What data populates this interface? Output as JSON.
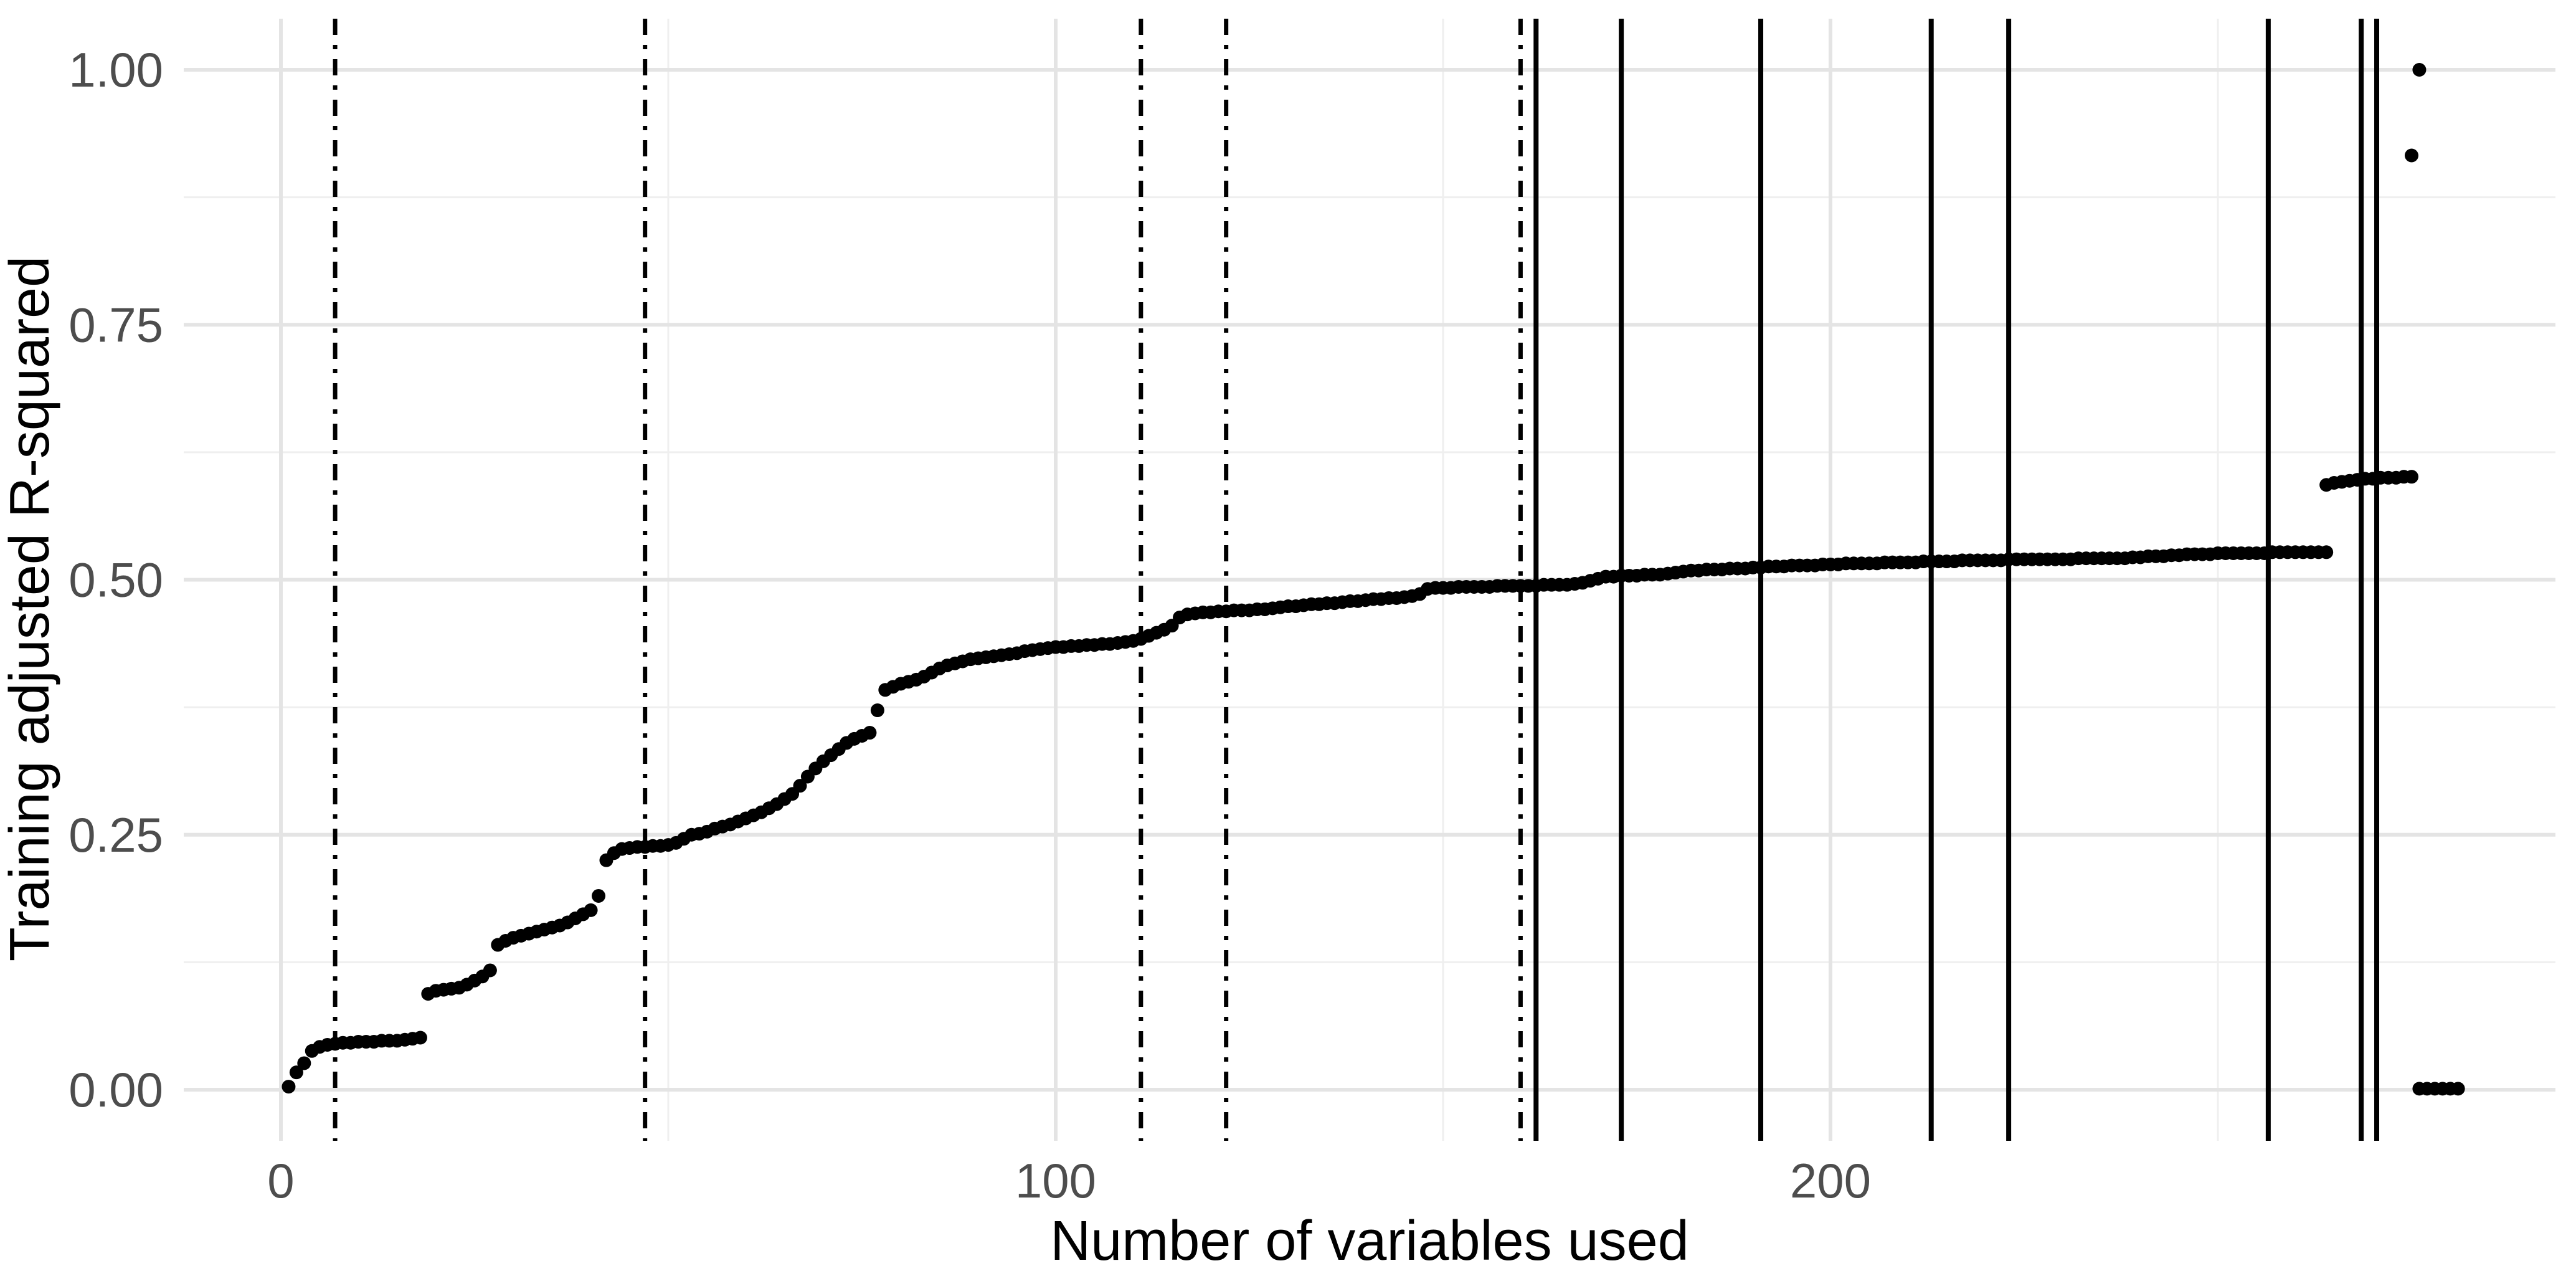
{
  "chart_data": {
    "type": "scatter",
    "title": "",
    "xlabel": "Number of variables used",
    "ylabel": "Training adjusted R-squared",
    "grid": "on",
    "legend": "none",
    "xlim": [
      -12.5,
      294
    ],
    "ylim": [
      -0.05,
      1.05
    ],
    "x_ticks": [
      {
        "label": "0",
        "value": 0
      },
      {
        "label": "100",
        "value": 100
      },
      {
        "label": "200",
        "value": 200
      }
    ],
    "y_ticks": [
      {
        "label": "0.00",
        "value": 0.0
      },
      {
        "label": "0.25",
        "value": 0.25
      },
      {
        "label": "0.50",
        "value": 0.5
      },
      {
        "label": "0.75",
        "value": 0.75
      },
      {
        "label": "1.00",
        "value": 1.0
      }
    ],
    "x_minor_gridlines": [
      50,
      150,
      250
    ],
    "y_minor_gridlines": [
      0.125,
      0.375,
      0.625,
      0.875
    ],
    "vlines_dashdot": [
      7,
      47,
      111,
      122,
      160
    ],
    "vlines_solid": [
      162,
      173,
      191,
      213,
      223,
      256.5,
      268.5,
      270.5
    ],
    "colors": {
      "point": "#000000",
      "vline": "#000000",
      "grid_major": "#e4e4e4",
      "grid_minor": "#efefef",
      "tick_text": "#4d4d4d",
      "axis_title_text": "#000000",
      "background": "#ffffff"
    },
    "points": [
      [
        1,
        0.003
      ],
      [
        2,
        0.017
      ],
      [
        3,
        0.026
      ],
      [
        4,
        0.038
      ],
      [
        5,
        0.042
      ],
      [
        6,
        0.044
      ],
      [
        7,
        0.045
      ],
      [
        8,
        0.046
      ],
      [
        9,
        0.046
      ],
      [
        10,
        0.047
      ],
      [
        11,
        0.047
      ],
      [
        12,
        0.047
      ],
      [
        13,
        0.048
      ],
      [
        14,
        0.048
      ],
      [
        15,
        0.048
      ],
      [
        16,
        0.049
      ],
      [
        17,
        0.05
      ],
      [
        18,
        0.051
      ],
      [
        19,
        0.094
      ],
      [
        20,
        0.097
      ],
      [
        21,
        0.098
      ],
      [
        22,
        0.099
      ],
      [
        23,
        0.1
      ],
      [
        24,
        0.103
      ],
      [
        25,
        0.107
      ],
      [
        26,
        0.111
      ],
      [
        27,
        0.117
      ],
      [
        28,
        0.142
      ],
      [
        29,
        0.146
      ],
      [
        30,
        0.149
      ],
      [
        31,
        0.151
      ],
      [
        32,
        0.153
      ],
      [
        33,
        0.155
      ],
      [
        34,
        0.157
      ],
      [
        35,
        0.159
      ],
      [
        36,
        0.161
      ],
      [
        37,
        0.164
      ],
      [
        38,
        0.168
      ],
      [
        39,
        0.172
      ],
      [
        40,
        0.176
      ],
      [
        41,
        0.19
      ],
      [
        42,
        0.225
      ],
      [
        43,
        0.232
      ],
      [
        44,
        0.236
      ],
      [
        45,
        0.237
      ],
      [
        46,
        0.238
      ],
      [
        47,
        0.238
      ],
      [
        48,
        0.239
      ],
      [
        49,
        0.239
      ],
      [
        50,
        0.24
      ],
      [
        51,
        0.242
      ],
      [
        52,
        0.246
      ],
      [
        53,
        0.25
      ],
      [
        54,
        0.251
      ],
      [
        55,
        0.253
      ],
      [
        56,
        0.256
      ],
      [
        57,
        0.258
      ],
      [
        58,
        0.26
      ],
      [
        59,
        0.263
      ],
      [
        60,
        0.266
      ],
      [
        61,
        0.269
      ],
      [
        62,
        0.272
      ],
      [
        63,
        0.276
      ],
      [
        64,
        0.28
      ],
      [
        65,
        0.285
      ],
      [
        66,
        0.29
      ],
      [
        67,
        0.298
      ],
      [
        68,
        0.307
      ],
      [
        69,
        0.315
      ],
      [
        70,
        0.322
      ],
      [
        71,
        0.328
      ],
      [
        72,
        0.334
      ],
      [
        73,
        0.34
      ],
      [
        74,
        0.344
      ],
      [
        75,
        0.347
      ],
      [
        76,
        0.35
      ],
      [
        77,
        0.372
      ],
      [
        78,
        0.392
      ],
      [
        79,
        0.395
      ],
      [
        80,
        0.398
      ],
      [
        81,
        0.4
      ],
      [
        82,
        0.402
      ],
      [
        83,
        0.405
      ],
      [
        84,
        0.409
      ],
      [
        85,
        0.413
      ],
      [
        86,
        0.416
      ],
      [
        87,
        0.418
      ],
      [
        88,
        0.42
      ],
      [
        89,
        0.422
      ],
      [
        90,
        0.423
      ],
      [
        91,
        0.424
      ],
      [
        92,
        0.425
      ],
      [
        93,
        0.426
      ],
      [
        94,
        0.427
      ],
      [
        95,
        0.428
      ],
      [
        96,
        0.43
      ],
      [
        97,
        0.431
      ],
      [
        98,
        0.432
      ],
      [
        99,
        0.433
      ],
      [
        100,
        0.434
      ],
      [
        101,
        0.434
      ],
      [
        102,
        0.435
      ],
      [
        103,
        0.435
      ],
      [
        104,
        0.436
      ],
      [
        105,
        0.436
      ],
      [
        106,
        0.437
      ],
      [
        107,
        0.437
      ],
      [
        108,
        0.438
      ],
      [
        109,
        0.439
      ],
      [
        110,
        0.44
      ],
      [
        111,
        0.442
      ],
      [
        112,
        0.445
      ],
      [
        113,
        0.448
      ],
      [
        114,
        0.451
      ],
      [
        115,
        0.455
      ],
      [
        116,
        0.463
      ],
      [
        117,
        0.466
      ],
      [
        118,
        0.467
      ],
      [
        119,
        0.468
      ],
      [
        120,
        0.468
      ],
      [
        121,
        0.469
      ],
      [
        122,
        0.469
      ],
      [
        123,
        0.47
      ],
      [
        124,
        0.47
      ],
      [
        125,
        0.47
      ],
      [
        126,
        0.471
      ],
      [
        127,
        0.471
      ],
      [
        128,
        0.472
      ],
      [
        129,
        0.473
      ],
      [
        130,
        0.474
      ],
      [
        131,
        0.474
      ],
      [
        132,
        0.475
      ],
      [
        133,
        0.476
      ],
      [
        134,
        0.476
      ],
      [
        135,
        0.477
      ],
      [
        136,
        0.477
      ],
      [
        137,
        0.478
      ],
      [
        138,
        0.479
      ],
      [
        139,
        0.479
      ],
      [
        140,
        0.48
      ],
      [
        141,
        0.481
      ],
      [
        142,
        0.481
      ],
      [
        143,
        0.482
      ],
      [
        144,
        0.482
      ],
      [
        145,
        0.483
      ],
      [
        146,
        0.484
      ],
      [
        147,
        0.486
      ],
      [
        148,
        0.491
      ],
      [
        149,
        0.492
      ],
      [
        150,
        0.492
      ],
      [
        151,
        0.492
      ],
      [
        152,
        0.493
      ],
      [
        153,
        0.493
      ],
      [
        154,
        0.493
      ],
      [
        155,
        0.493
      ],
      [
        156,
        0.493
      ],
      [
        157,
        0.494
      ],
      [
        158,
        0.494
      ],
      [
        159,
        0.494
      ],
      [
        160,
        0.494
      ],
      [
        161,
        0.494
      ],
      [
        162,
        0.494
      ],
      [
        163,
        0.495
      ],
      [
        164,
        0.495
      ],
      [
        165,
        0.495
      ],
      [
        166,
        0.495
      ],
      [
        167,
        0.496
      ],
      [
        168,
        0.497
      ],
      [
        169,
        0.499
      ],
      [
        170,
        0.501
      ],
      [
        171,
        0.503
      ],
      [
        172,
        0.503
      ],
      [
        173,
        0.504
      ],
      [
        174,
        0.504
      ],
      [
        175,
        0.504
      ],
      [
        176,
        0.505
      ],
      [
        177,
        0.505
      ],
      [
        178,
        0.505
      ],
      [
        179,
        0.506
      ],
      [
        180,
        0.507
      ],
      [
        181,
        0.508
      ],
      [
        182,
        0.509
      ],
      [
        183,
        0.509
      ],
      [
        184,
        0.51
      ],
      [
        185,
        0.51
      ],
      [
        186,
        0.51
      ],
      [
        187,
        0.511
      ],
      [
        188,
        0.511
      ],
      [
        189,
        0.511
      ],
      [
        190,
        0.512
      ],
      [
        191,
        0.512
      ],
      [
        192,
        0.513
      ],
      [
        193,
        0.513
      ],
      [
        194,
        0.513
      ],
      [
        195,
        0.514
      ],
      [
        196,
        0.514
      ],
      [
        197,
        0.514
      ],
      [
        198,
        0.514
      ],
      [
        199,
        0.515
      ],
      [
        200,
        0.515
      ],
      [
        201,
        0.515
      ],
      [
        202,
        0.516
      ],
      [
        203,
        0.516
      ],
      [
        204,
        0.516
      ],
      [
        205,
        0.516
      ],
      [
        206,
        0.516
      ],
      [
        207,
        0.517
      ],
      [
        208,
        0.517
      ],
      [
        209,
        0.517
      ],
      [
        210,
        0.517
      ],
      [
        211,
        0.517
      ],
      [
        212,
        0.518
      ],
      [
        213,
        0.518
      ],
      [
        214,
        0.518
      ],
      [
        215,
        0.518
      ],
      [
        216,
        0.518
      ],
      [
        217,
        0.519
      ],
      [
        218,
        0.519
      ],
      [
        219,
        0.519
      ],
      [
        220,
        0.519
      ],
      [
        221,
        0.519
      ],
      [
        222,
        0.519
      ],
      [
        223,
        0.52
      ],
      [
        224,
        0.52
      ],
      [
        225,
        0.52
      ],
      [
        226,
        0.52
      ],
      [
        227,
        0.52
      ],
      [
        228,
        0.52
      ],
      [
        229,
        0.52
      ],
      [
        230,
        0.52
      ],
      [
        231,
        0.52
      ],
      [
        232,
        0.521
      ],
      [
        233,
        0.521
      ],
      [
        234,
        0.521
      ],
      [
        235,
        0.521
      ],
      [
        236,
        0.521
      ],
      [
        237,
        0.521
      ],
      [
        238,
        0.521
      ],
      [
        239,
        0.522
      ],
      [
        240,
        0.522
      ],
      [
        241,
        0.523
      ],
      [
        242,
        0.523
      ],
      [
        243,
        0.523
      ],
      [
        244,
        0.524
      ],
      [
        245,
        0.524
      ],
      [
        246,
        0.525
      ],
      [
        247,
        0.525
      ],
      [
        248,
        0.525
      ],
      [
        249,
        0.525
      ],
      [
        250,
        0.526
      ],
      [
        251,
        0.526
      ],
      [
        252,
        0.526
      ],
      [
        253,
        0.526
      ],
      [
        254,
        0.526
      ],
      [
        255,
        0.526
      ],
      [
        256,
        0.526
      ],
      [
        257,
        0.527
      ],
      [
        258,
        0.527
      ],
      [
        259,
        0.527
      ],
      [
        260,
        0.527
      ],
      [
        261,
        0.527
      ],
      [
        262,
        0.527
      ],
      [
        263,
        0.527
      ],
      [
        264,
        0.527
      ],
      [
        264,
        0.593
      ],
      [
        265,
        0.595
      ],
      [
        266,
        0.596
      ],
      [
        267,
        0.597
      ],
      [
        268,
        0.598
      ],
      [
        269,
        0.599
      ],
      [
        270,
        0.599
      ],
      [
        271,
        0.6
      ],
      [
        272,
        0.6
      ],
      [
        273,
        0.6
      ],
      [
        274,
        0.601
      ],
      [
        275,
        0.601
      ],
      [
        275,
        0.916
      ],
      [
        276,
        1.0
      ],
      [
        276,
        0.001
      ],
      [
        277,
        0.001
      ],
      [
        278,
        0.001
      ],
      [
        279,
        0.001
      ],
      [
        280,
        0.001
      ],
      [
        281,
        0.001
      ]
    ]
  }
}
